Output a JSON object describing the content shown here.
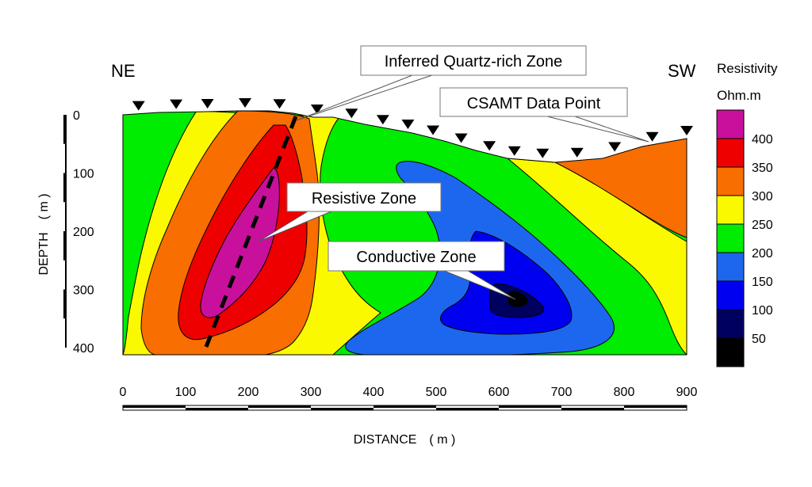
{
  "chart_data": {
    "type": "contour",
    "side_left": "NE",
    "side_right": "SW",
    "xlabel": "DISTANCE ( m )",
    "ylabel": "DEPTH ( m )",
    "x_ticks": [
      0,
      100,
      200,
      300,
      400,
      500,
      600,
      700,
      800,
      900
    ],
    "y_ticks": [
      0,
      100,
      200,
      300,
      400
    ],
    "xlim": [
      0,
      900
    ],
    "ylim": [
      0,
      400
    ],
    "legend": {
      "title": "Resistivity",
      "unit": "Ohm.m",
      "levels": [
        400,
        350,
        300,
        250,
        200,
        150,
        100,
        50
      ],
      "bins": [
        {
          "color": "#c8109c"
        },
        {
          "color": "#ee0000"
        },
        {
          "color": "#f86e00"
        },
        {
          "color": "#fbf900"
        },
        {
          "color": "#00ec00"
        },
        {
          "color": "#1d67ee"
        },
        {
          "color": "#0000f0"
        },
        {
          "color": "#000060"
        },
        {
          "color": "#000000"
        }
      ]
    },
    "data_point_distances": [
      25,
      85,
      135,
      195,
      250,
      310,
      365,
      415,
      455,
      495,
      540,
      585,
      625,
      670,
      725,
      785,
      845,
      900
    ],
    "annotations": {
      "quartz": "Inferred Quartz-rich Zone",
      "csamt": "CSAMT Data Point",
      "resistive": "Resistive Zone",
      "conductive": "Conductive Zone"
    }
  }
}
